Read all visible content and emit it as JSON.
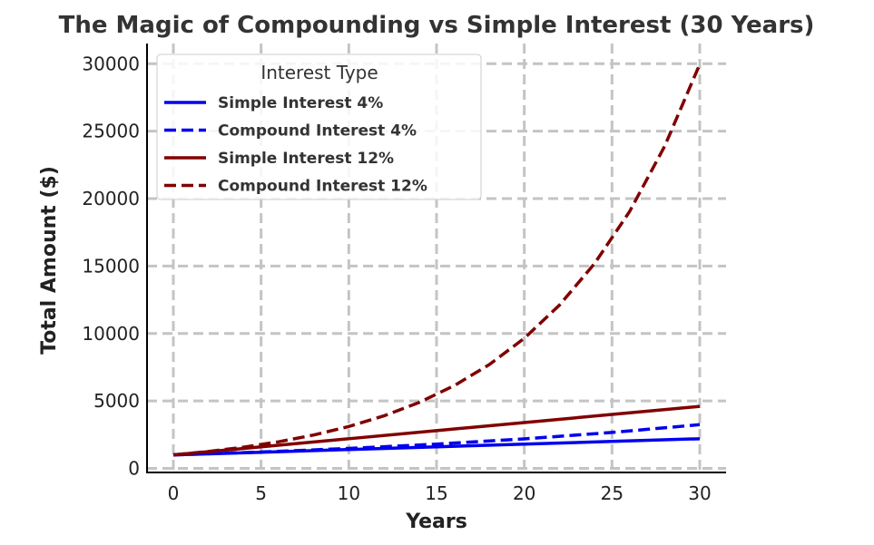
{
  "chart_data": {
    "type": "line",
    "title": "The Magic of Compounding vs Simple Interest (30 Years)",
    "xlabel": "Years",
    "ylabel": "Total Amount ($)",
    "xlim": [
      -1.5,
      31.5
    ],
    "ylim": [
      -300,
      31500
    ],
    "xticks": [
      0,
      5,
      10,
      15,
      20,
      25,
      30
    ],
    "yticks": [
      0,
      5000,
      10000,
      15000,
      20000,
      25000,
      30000
    ],
    "grid": true,
    "legend": {
      "title": "Interest Type",
      "placement": "top-left"
    },
    "series": [
      {
        "name": "Simple Interest 4%",
        "color": "#0000ee",
        "style": "solid",
        "x": [
          0,
          5,
          10,
          15,
          20,
          25,
          30
        ],
        "y": [
          1000,
          1200,
          1400,
          1600,
          1800,
          2000,
          2200
        ]
      },
      {
        "name": "Compound Interest 4%",
        "color": "#0000ee",
        "style": "dashed",
        "x": [
          0,
          5,
          10,
          15,
          20,
          25,
          30
        ],
        "y": [
          1000,
          1217,
          1480,
          1801,
          2191,
          2666,
          3243
        ]
      },
      {
        "name": "Simple Interest 12%",
        "color": "#800000",
        "style": "solid",
        "x": [
          0,
          5,
          10,
          15,
          20,
          25,
          30
        ],
        "y": [
          1000,
          1600,
          2200,
          2800,
          3400,
          4000,
          4600
        ]
      },
      {
        "name": "Compound Interest 12%",
        "color": "#800000",
        "style": "dashed",
        "x": [
          0,
          2,
          4,
          6,
          8,
          10,
          12,
          14,
          16,
          18,
          20,
          22,
          24,
          26,
          28,
          30
        ],
        "y": [
          1000,
          1254,
          1574,
          1974,
          2476,
          3106,
          3896,
          4887,
          6130,
          7690,
          9646,
          12100,
          15179,
          19040,
          23884,
          29960
        ]
      }
    ]
  }
}
